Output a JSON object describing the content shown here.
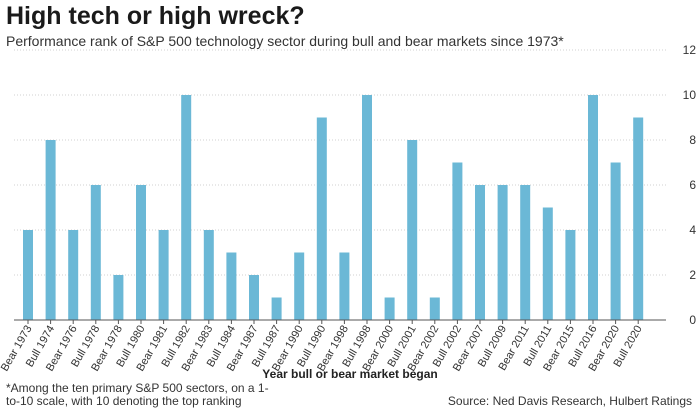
{
  "chart_data": {
    "type": "bar",
    "title": "High tech or high wreck?",
    "subtitle": "Performance rank of S&P 500 technology sector during bull and bear markets since 1973*",
    "xlabel": "Year bull or bear market began",
    "ylabel": "",
    "ylim": [
      0,
      12
    ],
    "yticks": [
      0,
      2,
      4,
      6,
      8,
      10,
      12
    ],
    "grid": true,
    "bar_color": "#6bb8d6",
    "categories": [
      "Bear 1973",
      "Bull 1974",
      "Bear 1976",
      "Bull 1978",
      "Bear 1978",
      "Bull 1980",
      "Bear 1981",
      "Bull 1982",
      "Bear 1983",
      "Bull 1984",
      "Bear 1987",
      "Bull 1987",
      "Bear 1990",
      "Bull 1990",
      "Bear 1998",
      "Bull 1998",
      "Bear 2000",
      "Bull 2001",
      "Bear 2002",
      "Bull 2002",
      "Bear 2007",
      "Bull 2009",
      "Bear 2011",
      "Bull 2011",
      "Bear 2015",
      "Bull 2016",
      "Bear 2020",
      "Bull 2020"
    ],
    "values": [
      4,
      8,
      4,
      6,
      2,
      6,
      4,
      10,
      4,
      3,
      2,
      1,
      3,
      9,
      3,
      10,
      1,
      8,
      1,
      7,
      6,
      6,
      6,
      5,
      4,
      10,
      7,
      9
    ]
  },
  "footnote": "*Among the ten primary S&P 500 sectors, on a 1-to-10 scale, with 10 denoting the top ranking",
  "source": "Source: Ned Davis Research, Hulbert Ratings"
}
